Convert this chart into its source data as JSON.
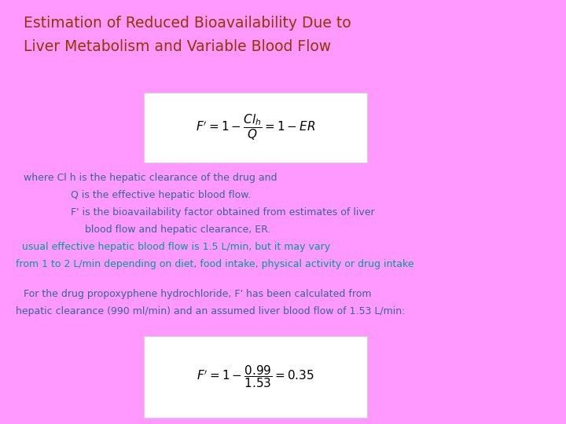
{
  "background_color": "#FF99FF",
  "title_line1": "Estimation of Reduced Bioavailability Due to",
  "title_line2": "Liver Metabolism and Variable Blood Flow",
  "title_color": "#993300",
  "formula1": "$F^{\\prime} = 1 - \\dfrac{Cl_h}{Q} = 1 - ER$",
  "formula2": "$F^{\\prime} = 1 - \\dfrac{0.99}{1.53} = 0.35$",
  "formula_bg": "#FFFFFF",
  "text_color_blue": "#336699",
  "text_color_teal": "#009999",
  "body_text1": "where Cl h is the hepatic clearance of the drug and",
  "body_text2": "Q is the effective hepatic blood flow.",
  "body_text3": "F' is the bioavailability factor obtained from estimates of liver",
  "body_text4": "blood flow and hepatic clearance, ER.",
  "body_text5": "usual effective hepatic blood flow is 1.5 L/min, but it may vary",
  "body_text6": "from 1 to 2 L/min depending on diet, food intake, physical activity or drug intake",
  "body_text7": "For the drug propoxyphene hydrochloride, F' has been calculated from",
  "body_text8": "hepatic clearance (990 ml/min) and an assumed liver blood flow of 1.53 L/min:"
}
